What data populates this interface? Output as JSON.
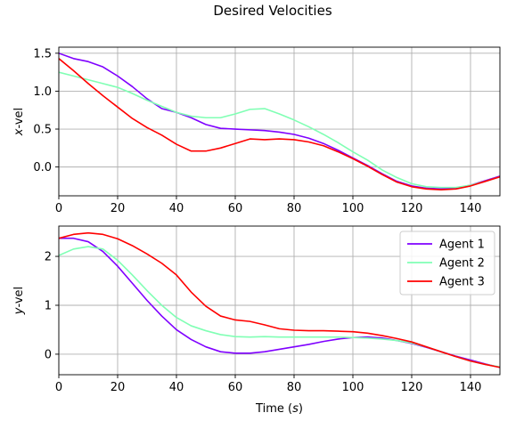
{
  "chart_data": {
    "title": "Desired Velocities",
    "xlabel": "Time (s)",
    "xlabel_main": "Time (",
    "xlabel_var": "s",
    "xlabel_tail": ")",
    "legend_location": "upper-right",
    "legend_entries": [
      "Agent 1",
      "Agent 2",
      "Agent 3"
    ],
    "grid": true,
    "colors": {
      "Agent 1": "#7f00ff",
      "Agent 2": "#80ffb4",
      "Agent 3": "#ff0000"
    },
    "subplots": [
      {
        "type": "line",
        "ylabel": "x-vel",
        "ylabel_var": "x",
        "ylabel_tail": "-vel",
        "xlim": [
          0,
          150
        ],
        "ylim": [
          -0.38,
          1.58
        ],
        "xticks": [
          0,
          20,
          40,
          60,
          80,
          100,
          120,
          140
        ],
        "xtick_labels": [
          "0",
          "20",
          "40",
          "60",
          "80",
          "100",
          "120",
          "140"
        ],
        "yticks": [
          0.0,
          0.5,
          1.0,
          1.5
        ],
        "ytick_labels": [
          "0.0",
          "0.5",
          "1.0",
          "1.5"
        ],
        "series": [
          {
            "name": "Agent 1",
            "x": [
              0,
              5,
              10,
              15,
              20,
              25,
              30,
              35,
              40,
              45,
              50,
              55,
              60,
              65,
              70,
              75,
              80,
              85,
              90,
              95,
              100,
              105,
              110,
              115,
              120,
              125,
              130,
              135,
              140,
              145,
              150
            ],
            "y": [
              1.5,
              1.43,
              1.39,
              1.32,
              1.2,
              1.06,
              0.9,
              0.77,
              0.72,
              0.65,
              0.56,
              0.51,
              0.5,
              0.49,
              0.48,
              0.46,
              0.43,
              0.38,
              0.31,
              0.22,
              0.12,
              0.02,
              -0.09,
              -0.19,
              -0.25,
              -0.28,
              -0.29,
              -0.28,
              -0.24,
              -0.18,
              -0.12
            ]
          },
          {
            "name": "Agent 2",
            "x": [
              0,
              5,
              10,
              15,
              20,
              25,
              30,
              35,
              40,
              45,
              50,
              55,
              60,
              65,
              70,
              75,
              80,
              85,
              90,
              95,
              100,
              105,
              110,
              115,
              120,
              125,
              130,
              135,
              140,
              145,
              150
            ],
            "y": [
              1.25,
              1.2,
              1.15,
              1.1,
              1.05,
              0.97,
              0.88,
              0.8,
              0.72,
              0.67,
              0.65,
              0.65,
              0.7,
              0.76,
              0.77,
              0.7,
              0.62,
              0.53,
              0.43,
              0.32,
              0.2,
              0.09,
              -0.04,
              -0.14,
              -0.22,
              -0.26,
              -0.27,
              -0.27,
              -0.24,
              -0.19,
              -0.13
            ]
          },
          {
            "name": "Agent 3",
            "x": [
              0,
              5,
              10,
              15,
              20,
              25,
              30,
              35,
              40,
              45,
              50,
              55,
              60,
              65,
              70,
              75,
              80,
              85,
              90,
              95,
              100,
              105,
              110,
              115,
              120,
              125,
              130,
              135,
              140,
              145,
              150
            ],
            "y": [
              1.43,
              1.27,
              1.1,
              0.94,
              0.79,
              0.64,
              0.52,
              0.42,
              0.3,
              0.21,
              0.21,
              0.25,
              0.31,
              0.37,
              0.36,
              0.37,
              0.36,
              0.33,
              0.28,
              0.2,
              0.11,
              0.01,
              -0.1,
              -0.2,
              -0.26,
              -0.29,
              -0.3,
              -0.29,
              -0.25,
              -0.19,
              -0.13
            ]
          }
        ]
      },
      {
        "type": "line",
        "ylabel": "y-vel",
        "ylabel_var": "y",
        "ylabel_tail": "-vel",
        "xlim": [
          0,
          150
        ],
        "ylim": [
          -0.42,
          2.62
        ],
        "xticks": [
          0,
          20,
          40,
          60,
          80,
          100,
          120,
          140
        ],
        "xtick_labels": [
          "0",
          "20",
          "40",
          "60",
          "80",
          "100",
          "120",
          "140"
        ],
        "yticks": [
          0,
          1,
          2
        ],
        "ytick_labels": [
          "0",
          "1",
          "2"
        ],
        "series": [
          {
            "name": "Agent 1",
            "x": [
              0,
              5,
              10,
              15,
              20,
              25,
              30,
              35,
              40,
              45,
              50,
              55,
              60,
              65,
              70,
              75,
              80,
              85,
              90,
              95,
              100,
              105,
              110,
              115,
              120,
              125,
              130,
              135,
              140,
              145,
              150
            ],
            "y": [
              2.37,
              2.37,
              2.3,
              2.1,
              1.8,
              1.45,
              1.1,
              0.78,
              0.5,
              0.3,
              0.15,
              0.05,
              0.02,
              0.02,
              0.05,
              0.1,
              0.15,
              0.2,
              0.26,
              0.31,
              0.34,
              0.35,
              0.33,
              0.28,
              0.22,
              0.14,
              0.05,
              -0.04,
              -0.12,
              -0.2,
              -0.27
            ]
          },
          {
            "name": "Agent 2",
            "x": [
              0,
              5,
              10,
              15,
              20,
              25,
              30,
              35,
              40,
              45,
              50,
              55,
              60,
              65,
              70,
              75,
              80,
              85,
              90,
              95,
              100,
              105,
              110,
              115,
              120,
              125,
              130,
              135,
              140,
              145,
              150
            ],
            "y": [
              2.02,
              2.15,
              2.2,
              2.15,
              1.92,
              1.62,
              1.3,
              1.0,
              0.75,
              0.58,
              0.48,
              0.4,
              0.36,
              0.35,
              0.36,
              0.35,
              0.35,
              0.35,
              0.35,
              0.35,
              0.34,
              0.33,
              0.31,
              0.28,
              0.23,
              0.15,
              0.05,
              -0.05,
              -0.14,
              -0.21,
              -0.26
            ]
          },
          {
            "name": "Agent 3",
            "x": [
              0,
              5,
              10,
              15,
              20,
              25,
              30,
              35,
              40,
              45,
              50,
              55,
              60,
              65,
              70,
              75,
              80,
              85,
              90,
              95,
              100,
              105,
              110,
              115,
              120,
              125,
              130,
              135,
              140,
              145,
              150
            ],
            "y": [
              2.37,
              2.45,
              2.48,
              2.45,
              2.36,
              2.22,
              2.05,
              1.86,
              1.62,
              1.27,
              0.98,
              0.78,
              0.7,
              0.67,
              0.6,
              0.52,
              0.49,
              0.48,
              0.48,
              0.47,
              0.46,
              0.43,
              0.38,
              0.32,
              0.25,
              0.15,
              0.05,
              -0.05,
              -0.14,
              -0.21,
              -0.27
            ]
          }
        ]
      }
    ]
  }
}
